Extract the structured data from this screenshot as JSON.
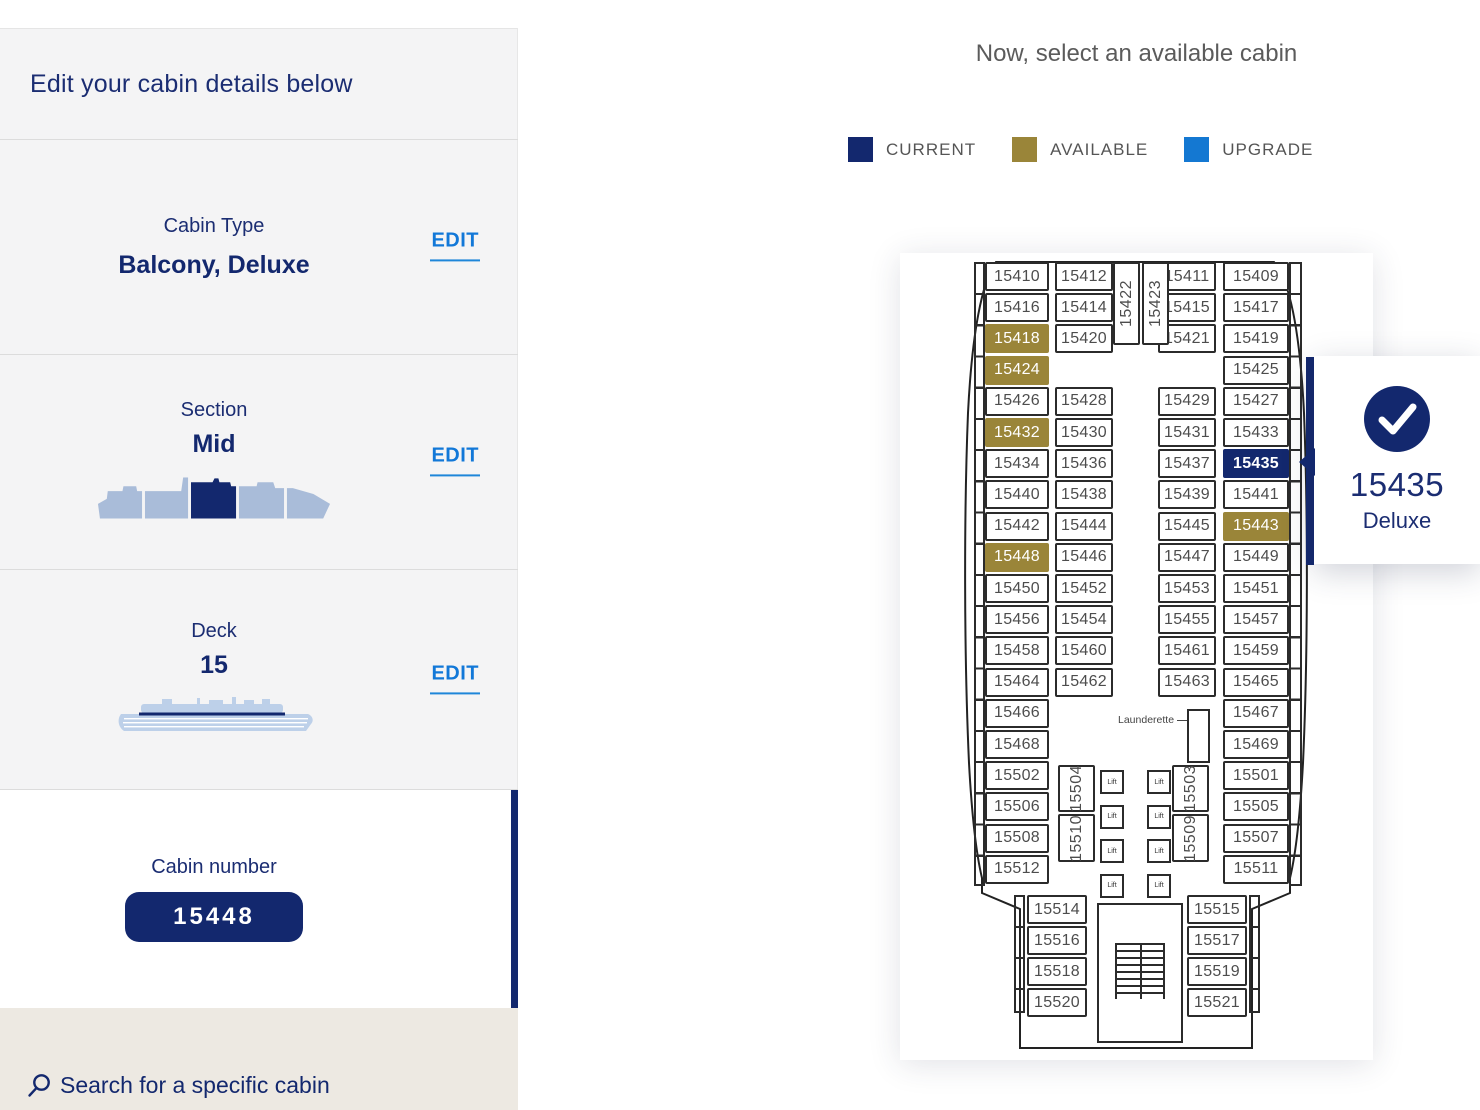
{
  "sidebar": {
    "heading": "Edit your cabin details below",
    "cabin_type": {
      "label": "Cabin Type",
      "value": "Balcony, Deluxe",
      "edit_label": "EDIT"
    },
    "section": {
      "label": "Section",
      "value": "Mid",
      "edit_label": "EDIT",
      "icon": "ship-section-silhouette"
    },
    "deck": {
      "label": "Deck",
      "value": "15",
      "edit_label": "EDIT",
      "icon": "ship-deck-silhouette"
    },
    "cabin_number": {
      "label": "Cabin number",
      "value": "15448"
    },
    "search": {
      "label": "Search for a specific cabin",
      "icon": "search-icon"
    }
  },
  "main": {
    "title": "Now, select an available cabin"
  },
  "legend": {
    "items": [
      {
        "label": "CURRENT",
        "color": "#13286e"
      },
      {
        "label": "AVAILABLE",
        "color": "#9a8539"
      },
      {
        "label": "UPGRADE",
        "color": "#1478d2"
      }
    ]
  },
  "tooltip": {
    "cabin": "15435",
    "type": "Deluxe",
    "icon": "check-icon"
  },
  "plan": {
    "launderette_label": "Launderette",
    "lift_label": "Lift",
    "rows": [
      {
        "r": 1,
        "cabins": [
          [
            "L1",
            "15410"
          ],
          [
            "L2",
            "15412"
          ],
          [
            "R2",
            "15411"
          ],
          [
            "R1",
            "15409"
          ]
        ]
      },
      {
        "r": 2,
        "cabins": [
          [
            "L1",
            "15416"
          ],
          [
            "L2",
            "15414"
          ],
          [
            "R2",
            "15415"
          ],
          [
            "R1",
            "15417"
          ]
        ]
      },
      {
        "r": 3,
        "cabins": [
          [
            "L1",
            "15418",
            "available"
          ],
          [
            "L2",
            "15420"
          ],
          [
            "R2",
            "15421"
          ],
          [
            "R1",
            "15419"
          ]
        ]
      },
      {
        "r": 4,
        "cabins": [
          [
            "L1",
            "15424",
            "available"
          ],
          [
            "R1",
            "15425"
          ]
        ]
      },
      {
        "r": 5,
        "cabins": [
          [
            "L1",
            "15426"
          ],
          [
            "L2",
            "15428"
          ],
          [
            "R2",
            "15429"
          ],
          [
            "R1",
            "15427"
          ]
        ]
      },
      {
        "r": 6,
        "cabins": [
          [
            "L1",
            "15432",
            "available"
          ],
          [
            "L2",
            "15430"
          ],
          [
            "R2",
            "15431"
          ],
          [
            "R1",
            "15433"
          ]
        ]
      },
      {
        "r": 7,
        "cabins": [
          [
            "L1",
            "15434"
          ],
          [
            "L2",
            "15436"
          ],
          [
            "R2",
            "15437"
          ],
          [
            "R1",
            "15435",
            "current"
          ]
        ]
      },
      {
        "r": 8,
        "cabins": [
          [
            "L1",
            "15440"
          ],
          [
            "L2",
            "15438"
          ],
          [
            "R2",
            "15439"
          ],
          [
            "R1",
            "15441"
          ]
        ]
      },
      {
        "r": 9,
        "cabins": [
          [
            "L1",
            "15442"
          ],
          [
            "L2",
            "15444"
          ],
          [
            "R2",
            "15445"
          ],
          [
            "R1",
            "15443",
            "available"
          ]
        ]
      },
      {
        "r": 10,
        "cabins": [
          [
            "L1",
            "15448",
            "available"
          ],
          [
            "L2",
            "15446"
          ],
          [
            "R2",
            "15447"
          ],
          [
            "R1",
            "15449"
          ]
        ]
      },
      {
        "r": 11,
        "cabins": [
          [
            "L1",
            "15450"
          ],
          [
            "L2",
            "15452"
          ],
          [
            "R2",
            "15453"
          ],
          [
            "R1",
            "15451"
          ]
        ]
      },
      {
        "r": 12,
        "cabins": [
          [
            "L1",
            "15456"
          ],
          [
            "L2",
            "15454"
          ],
          [
            "R2",
            "15455"
          ],
          [
            "R1",
            "15457"
          ]
        ]
      },
      {
        "r": 13,
        "cabins": [
          [
            "L1",
            "15458"
          ],
          [
            "L2",
            "15460"
          ],
          [
            "R2",
            "15461"
          ],
          [
            "R1",
            "15459"
          ]
        ]
      },
      {
        "r": 14,
        "cabins": [
          [
            "L1",
            "15464"
          ],
          [
            "L2",
            "15462"
          ],
          [
            "R2",
            "15463"
          ],
          [
            "R1",
            "15465"
          ]
        ]
      },
      {
        "r": 15,
        "cabins": [
          [
            "L1",
            "15466"
          ],
          [
            "R1",
            "15467"
          ]
        ]
      },
      {
        "r": 16,
        "cabins": [
          [
            "L1",
            "15468"
          ],
          [
            "R1",
            "15469"
          ]
        ]
      },
      {
        "r": 17,
        "cabins": [
          [
            "L1",
            "15502"
          ],
          [
            "R1",
            "15501"
          ]
        ]
      },
      {
        "r": 18,
        "cabins": [
          [
            "L1",
            "15506"
          ],
          [
            "R1",
            "15505"
          ]
        ]
      },
      {
        "r": 19,
        "cabins": [
          [
            "L1",
            "15508"
          ],
          [
            "R1",
            "15507"
          ]
        ]
      },
      {
        "r": 20,
        "cabins": [
          [
            "L1",
            "15512"
          ],
          [
            "R1",
            "15511"
          ]
        ]
      },
      {
        "r": 21,
        "cabins": [
          [
            "LN",
            "15514"
          ],
          [
            "RN",
            "15515"
          ]
        ]
      },
      {
        "r": 22,
        "cabins": [
          [
            "LN",
            "15516"
          ],
          [
            "RN",
            "15517"
          ]
        ]
      },
      {
        "r": 23,
        "cabins": [
          [
            "LN",
            "15518"
          ],
          [
            "RN",
            "15519"
          ]
        ]
      },
      {
        "r": 24,
        "cabins": [
          [
            "LN",
            "15520"
          ],
          [
            "RN",
            "15521"
          ]
        ]
      }
    ],
    "vertical_cabins": [
      {
        "num": "15422",
        "slot": "bow-left"
      },
      {
        "num": "15423",
        "slot": "bow-right"
      },
      {
        "num": "15504",
        "slot": "mid-left-1"
      },
      {
        "num": "15510",
        "slot": "mid-left-2"
      },
      {
        "num": "15503",
        "slot": "mid-right-1"
      },
      {
        "num": "15509",
        "slot": "mid-right-2"
      }
    ]
  }
}
